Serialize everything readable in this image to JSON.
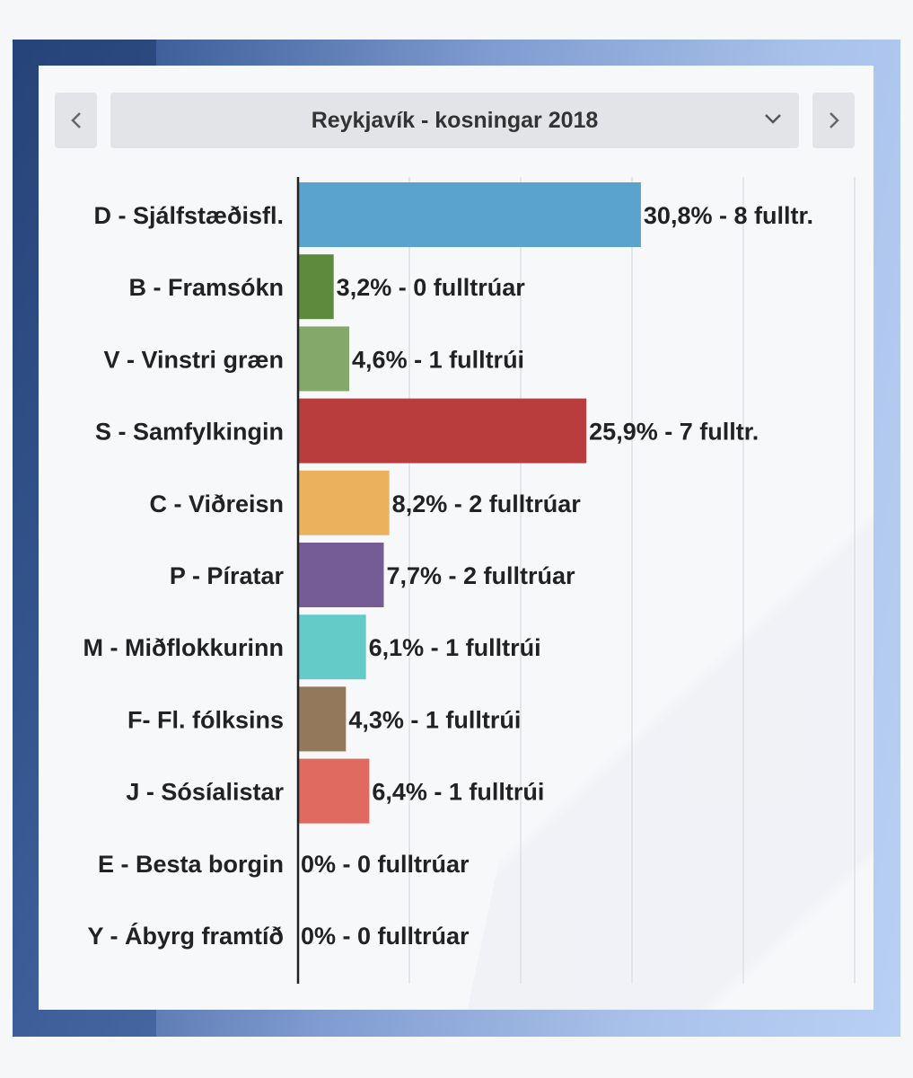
{
  "selector": {
    "title": "Reykjavík - kosningar 2018"
  },
  "icons": {
    "prev": "chevron-left-icon",
    "next": "chevron-right-icon",
    "dropdown": "chevron-down-icon"
  },
  "chart_data": {
    "type": "bar",
    "orientation": "horizontal",
    "title": "",
    "xlabel": "",
    "ylabel": "",
    "xlim": [
      0,
      50
    ],
    "grid": true,
    "categories": [
      "D - Sjálfstæðisfl.",
      "B - Framsókn",
      "V - Vinstri græn",
      "S - Samfylkingin",
      "C - Viðreisn",
      "P - Píratar",
      "M - Miðflokkurinn",
      "F- Fl. fólksins",
      "J - Sósíalistar",
      "E - Besta borgin",
      "Y - Ábyrg framtíð"
    ],
    "values": [
      30.8,
      3.2,
      4.6,
      25.9,
      8.2,
      7.7,
      6.1,
      4.3,
      6.4,
      0,
      0
    ],
    "value_labels": [
      "30,8% - 8 fulltr.",
      "3,2% - 0 fulltrúar",
      "4,6% - 1 fulltrúi",
      "25,9% - 7 fulltr.",
      "8,2% - 2 fulltrúar",
      "7,7% - 2 fulltrúar",
      "6,1% - 1 fulltrúi",
      "4,3% - 1 fulltrúi",
      "6,4% - 1 fulltrúi",
      "0% - 0 fulltrúar",
      "0% - 0 fulltrúar"
    ],
    "colors": [
      "#5aa3cf",
      "#5e8a3c",
      "#84a86a",
      "#b93d3d",
      "#ecb15c",
      "#755c96",
      "#65cbc8",
      "#93785b",
      "#e06a5f",
      "#999999",
      "#999999"
    ]
  }
}
